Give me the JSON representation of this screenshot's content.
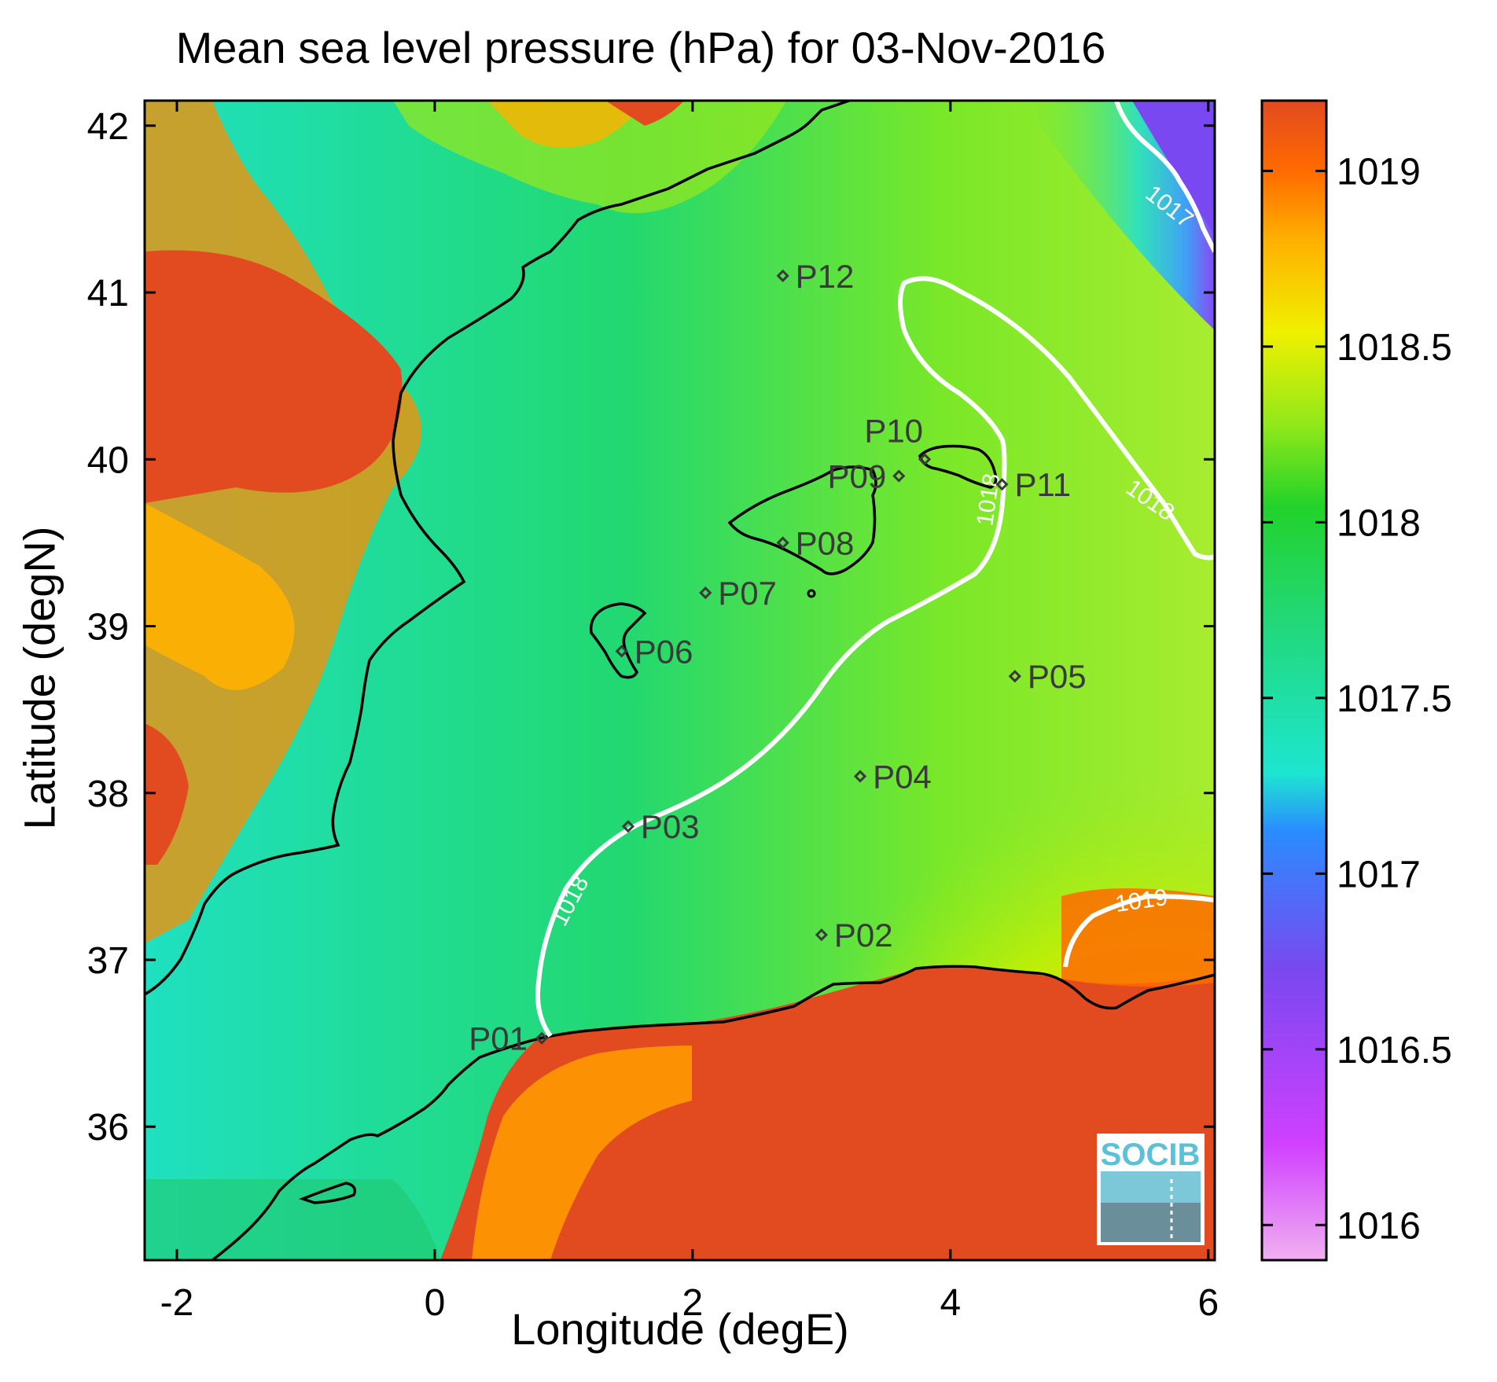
{
  "title": "Mean sea level pressure (hPa) for 03-Nov-2016",
  "xlabel": "Longitude (degE)",
  "ylabel": "Latitude (degN)",
  "x_ticks": [
    "-2",
    "0",
    "2",
    "4",
    "6"
  ],
  "y_ticks": [
    "36",
    "37",
    "38",
    "39",
    "40",
    "41",
    "42"
  ],
  "colorbar_ticks": [
    "1016",
    "1016.5",
    "1017",
    "1017.5",
    "1018",
    "1018.5",
    "1019"
  ],
  "contour_labels": [
    "1017",
    "1018",
    "1018",
    "1018",
    "1019"
  ],
  "stations": [
    {
      "id": "P01",
      "lon": 0.83,
      "lat": 36.53
    },
    {
      "id": "P02",
      "lon": 3.0,
      "lat": 37.15
    },
    {
      "id": "P03",
      "lon": 1.5,
      "lat": 37.8
    },
    {
      "id": "P04",
      "lon": 3.3,
      "lat": 38.1
    },
    {
      "id": "P05",
      "lon": 4.5,
      "lat": 38.7
    },
    {
      "id": "P06",
      "lon": 1.45,
      "lat": 38.85
    },
    {
      "id": "P07",
      "lon": 2.1,
      "lat": 39.2
    },
    {
      "id": "P08",
      "lon": 2.7,
      "lat": 39.5
    },
    {
      "id": "P09",
      "lon": 3.6,
      "lat": 39.9
    },
    {
      "id": "P10",
      "lon": 3.8,
      "lat": 40.0
    },
    {
      "id": "P11",
      "lon": 4.4,
      "lat": 39.85
    },
    {
      "id": "P12",
      "lon": 2.7,
      "lat": 41.1
    }
  ],
  "logo": "SOCIB",
  "colors": {
    "high": "#e24a1f",
    "orange": "#ff8a00",
    "yellow": "#f5f500",
    "green": "#22d22a",
    "cyan": "#1de6d0",
    "blue": "#2c8cff",
    "purple": "#8a3cff",
    "pink": "#f0a0f0",
    "contour": "#ffffff",
    "coast": "#000000",
    "station": "#3a3a3a"
  },
  "chart_data": {
    "type": "heatmap",
    "variable": "Mean sea level pressure",
    "units": "hPa",
    "date": "03-Nov-2016",
    "xlim": [
      -2.25,
      6.05
    ],
    "ylim": [
      35.2,
      42.15
    ],
    "colorbar_range": [
      1015.9,
      1019.2
    ],
    "contour_levels": [
      1017,
      1018,
      1019
    ]
  }
}
